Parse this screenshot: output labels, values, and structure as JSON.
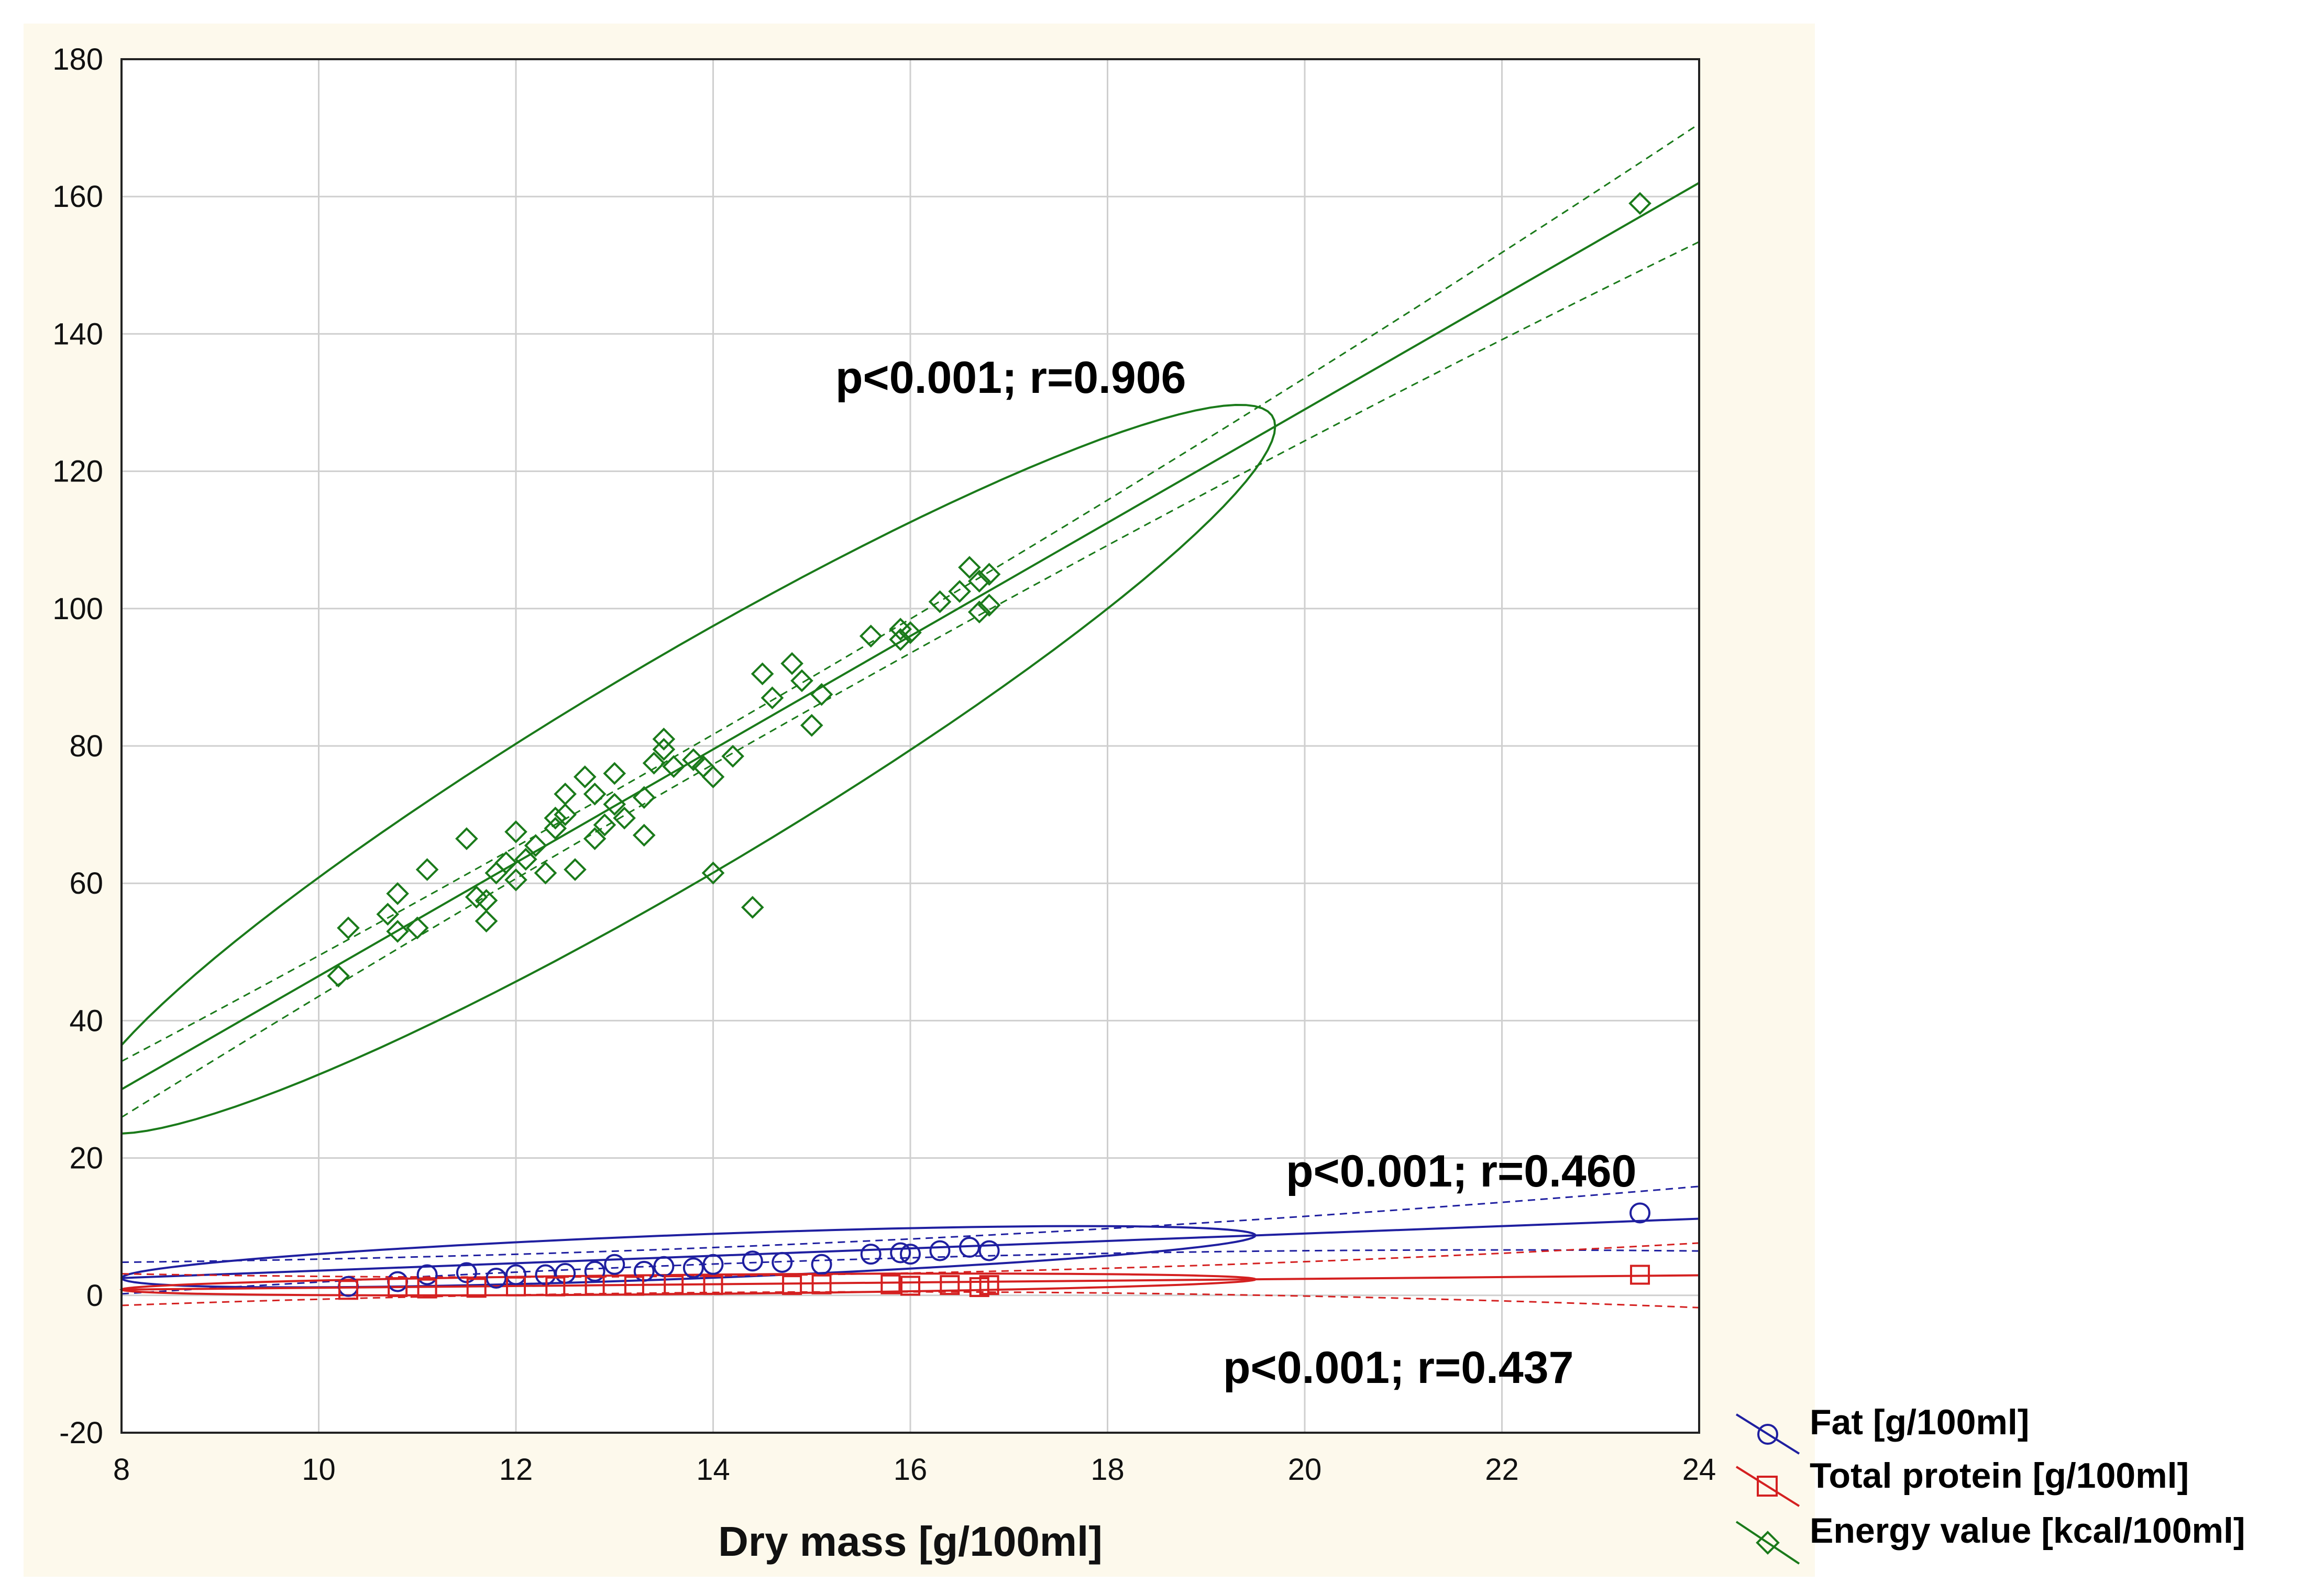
{
  "chart_data": {
    "type": "scatter",
    "title": "",
    "xlabel": "Dry mass [g/100ml]",
    "ylabel": "",
    "xlim": [
      8,
      24
    ],
    "ylim": [
      -20,
      180
    ],
    "xticks": [
      8,
      10,
      12,
      14,
      16,
      18,
      20,
      22,
      24
    ],
    "yticks": [
      -20,
      0,
      20,
      40,
      60,
      80,
      100,
      120,
      140,
      160,
      180
    ],
    "grid": true,
    "legend_position": "bottom-right, outside plot",
    "annotations": [
      {
        "text": "p<0.001; r=0.906",
        "series": "Energy value [kcal/100ml]",
        "x": 15.2,
        "y": 134
      },
      {
        "text": "p<0.001; r=0.460",
        "series": "Fat [g/100ml]",
        "x": 19.3,
        "y": 18
      },
      {
        "text": "p<0.001; r=0.437",
        "series": "Total protein [g/100ml]",
        "x": 18.7,
        "y": -11
      }
    ],
    "series": [
      {
        "name": "Fat [g/100ml]",
        "color": "#1f1fa0",
        "marker": "circle",
        "fit": {
          "slope": 0.54,
          "intercept": -1.8
        },
        "ellipse": {
          "x_range": [
            8,
            19.5
          ],
          "center_y": 4,
          "half_width": 3.2
        },
        "points": [
          [
            10.3,
            1.3
          ],
          [
            10.8,
            2.0
          ],
          [
            11.1,
            3.0
          ],
          [
            11.5,
            3.3
          ],
          [
            11.8,
            2.5
          ],
          [
            12.0,
            3.0
          ],
          [
            12.3,
            3.0
          ],
          [
            12.5,
            3.2
          ],
          [
            12.8,
            3.5
          ],
          [
            13.0,
            4.5
          ],
          [
            13.3,
            3.5
          ],
          [
            13.5,
            4.2
          ],
          [
            13.8,
            4.0
          ],
          [
            14.0,
            4.5
          ],
          [
            14.4,
            5.0
          ],
          [
            14.7,
            4.8
          ],
          [
            15.1,
            4.5
          ],
          [
            15.6,
            6.0
          ],
          [
            15.9,
            6.2
          ],
          [
            16.0,
            6.0
          ],
          [
            16.3,
            6.5
          ],
          [
            16.6,
            7.0
          ],
          [
            16.8,
            6.5
          ],
          [
            23.4,
            12.0
          ]
        ]
      },
      {
        "name": "Total protein [g/100ml]",
        "color": "#d42020",
        "marker": "square",
        "fit": {
          "slope": 0.13,
          "intercept": -0.2
        },
        "ellipse": {
          "x_range": [
            8,
            19.5
          ],
          "center_y": 1.5,
          "half_width": 1.4
        },
        "points": [
          [
            10.3,
            0.8
          ],
          [
            10.8,
            1.2
          ],
          [
            11.1,
            1.0
          ],
          [
            11.6,
            1.1
          ],
          [
            12.0,
            1.3
          ],
          [
            12.4,
            1.3
          ],
          [
            12.8,
            1.4
          ],
          [
            13.2,
            1.4
          ],
          [
            13.6,
            1.5
          ],
          [
            14.0,
            1.5
          ],
          [
            14.8,
            1.5
          ],
          [
            15.1,
            1.6
          ],
          [
            15.8,
            1.6
          ],
          [
            16.0,
            1.4
          ],
          [
            16.4,
            1.5
          ],
          [
            16.7,
            1.2
          ],
          [
            16.8,
            1.5
          ],
          [
            23.4,
            3.0
          ]
        ]
      },
      {
        "name": "Energy value [kcal/100ml]",
        "color": "#1a7a1a",
        "marker": "diamond",
        "fit": {
          "slope": 8.25,
          "intercept": -36
        },
        "ellipse": {
          "x_range": [
            7.6,
            19.7
          ],
          "center_y": 75,
          "half_width": 18
        },
        "points": [
          [
            10.2,
            46.5
          ],
          [
            10.3,
            53.5
          ],
          [
            10.7,
            55.5
          ],
          [
            10.8,
            58.5
          ],
          [
            10.8,
            53.0
          ],
          [
            11.0,
            53.5
          ],
          [
            11.1,
            62.0
          ],
          [
            11.5,
            66.5
          ],
          [
            11.6,
            58.0
          ],
          [
            11.7,
            57.5
          ],
          [
            11.7,
            54.5
          ],
          [
            11.8,
            61.5
          ],
          [
            11.9,
            63.0
          ],
          [
            12.0,
            60.5
          ],
          [
            12.0,
            67.5
          ],
          [
            12.1,
            63.5
          ],
          [
            12.2,
            65.5
          ],
          [
            12.3,
            61.5
          ],
          [
            12.4,
            68.0
          ],
          [
            12.4,
            69.5
          ],
          [
            12.5,
            73.0
          ],
          [
            12.5,
            70.0
          ],
          [
            12.6,
            62.0
          ],
          [
            12.7,
            75.5
          ],
          [
            12.8,
            73.0
          ],
          [
            12.8,
            66.5
          ],
          [
            12.9,
            68.5
          ],
          [
            13.0,
            71.5
          ],
          [
            13.0,
            76.0
          ],
          [
            13.1,
            69.5
          ],
          [
            13.3,
            72.5
          ],
          [
            13.3,
            67.0
          ],
          [
            13.4,
            77.5
          ],
          [
            13.5,
            79.5
          ],
          [
            13.5,
            81.0
          ],
          [
            13.6,
            77.0
          ],
          [
            13.8,
            78.0
          ],
          [
            13.9,
            77.0
          ],
          [
            14.0,
            75.5
          ],
          [
            14.0,
            61.5
          ],
          [
            14.2,
            78.5
          ],
          [
            14.4,
            56.5
          ],
          [
            14.5,
            90.5
          ],
          [
            14.6,
            87.0
          ],
          [
            14.8,
            92.0
          ],
          [
            14.9,
            89.5
          ],
          [
            15.0,
            83.0
          ],
          [
            15.1,
            87.5
          ],
          [
            15.6,
            96.0
          ],
          [
            15.9,
            95.5
          ],
          [
            15.9,
            97.0
          ],
          [
            16.0,
            96.5
          ],
          [
            16.3,
            101.0
          ],
          [
            16.5,
            102.5
          ],
          [
            16.6,
            106.0
          ],
          [
            16.7,
            104.0
          ],
          [
            16.7,
            99.5
          ],
          [
            16.8,
            105.0
          ],
          [
            16.8,
            100.5
          ],
          [
            23.4,
            159.0
          ]
        ]
      }
    ]
  }
}
